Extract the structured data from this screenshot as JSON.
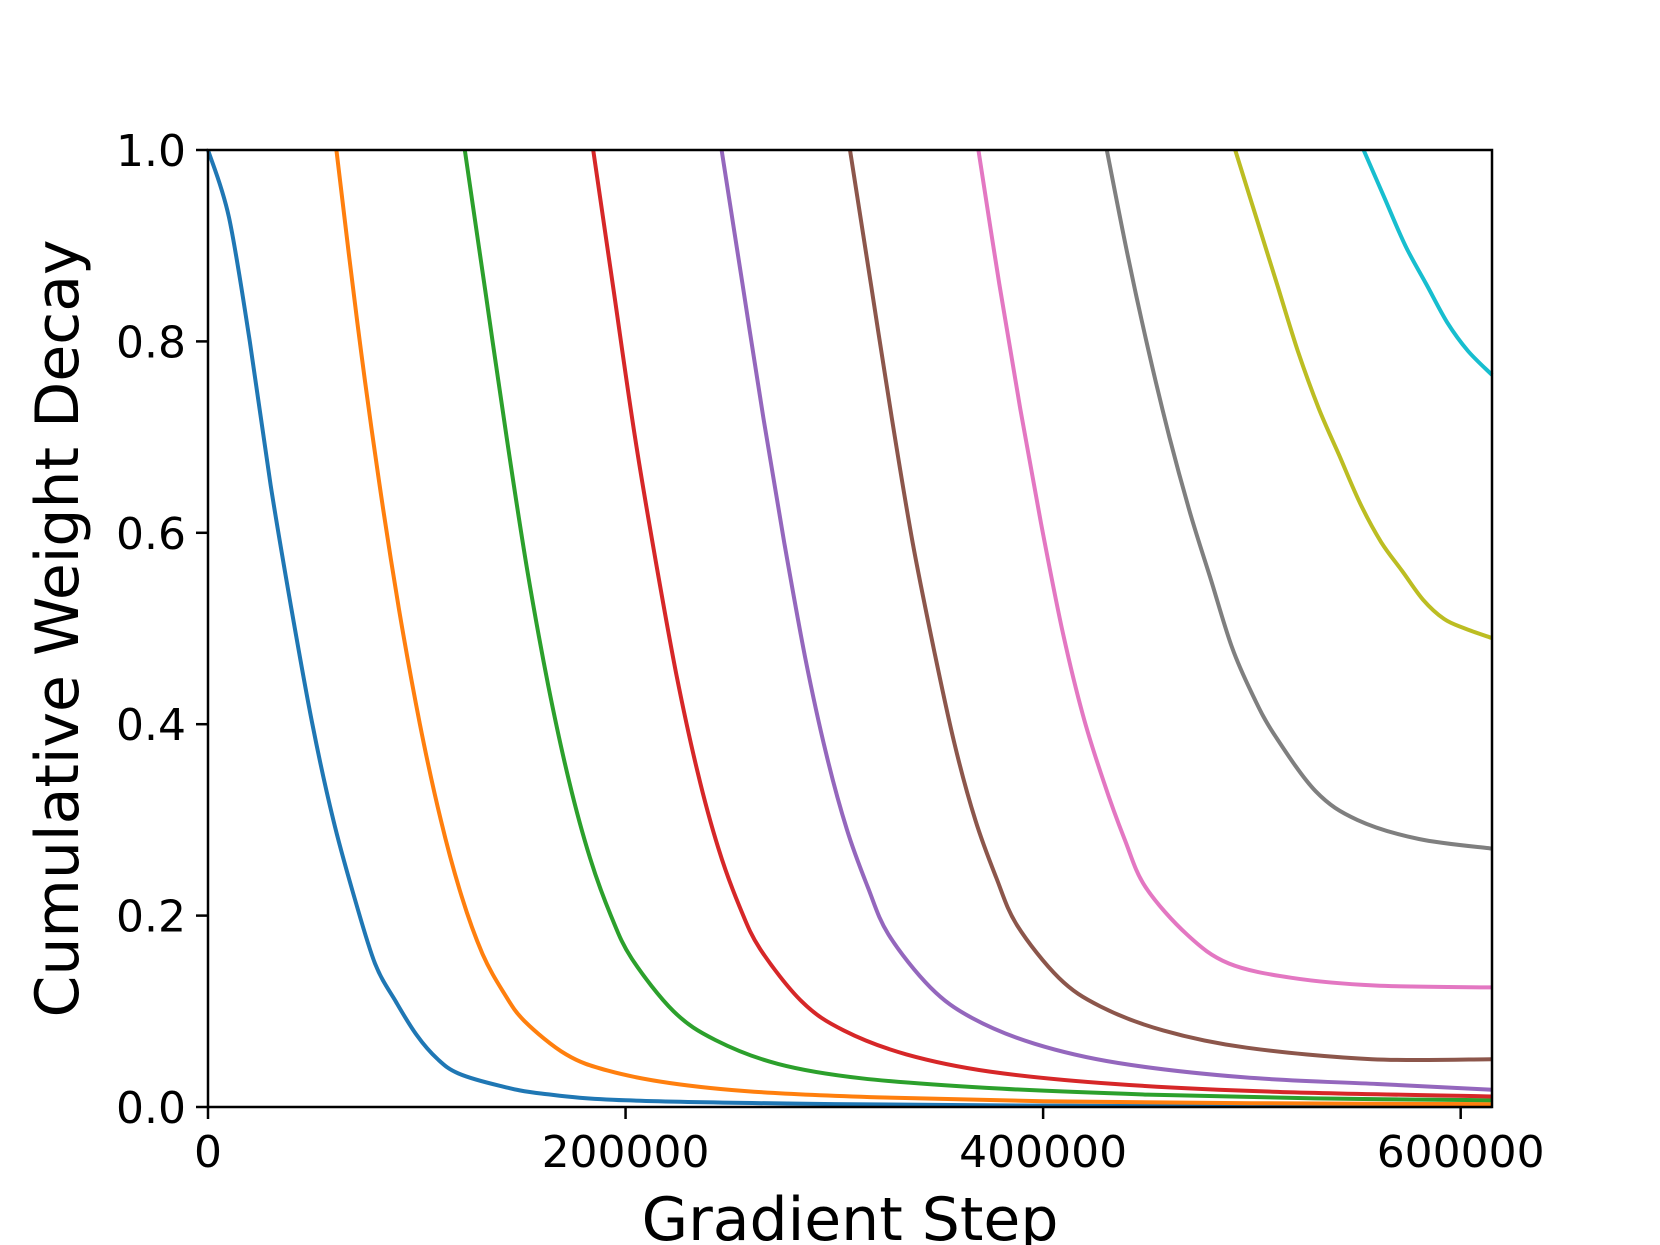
{
  "chart_data": {
    "type": "line",
    "title": "",
    "xlabel": "Gradient Step",
    "ylabel": "Cumulative Weight Decay",
    "xlim": [
      0,
      615000
    ],
    "ylim": [
      0,
      1.0
    ],
    "x_ticks": [
      0,
      200000,
      400000,
      600000
    ],
    "x_tick_labels": [
      "0",
      "200000",
      "400000",
      "600000"
    ],
    "y_ticks": [
      0.0,
      0.2,
      0.4,
      0.6,
      0.8,
      1.0
    ],
    "y_tick_labels": [
      "0.0",
      "0.2",
      "0.4",
      "0.6",
      "0.8",
      "1.0"
    ],
    "grid": false,
    "legend": "none",
    "series": [
      {
        "color": "#1f77b4",
        "start": 0,
        "points": [
          [
            0,
            1.0
          ],
          [
            10000,
            0.93
          ],
          [
            20000,
            0.8
          ],
          [
            30000,
            0.65
          ],
          [
            40000,
            0.52
          ],
          [
            50000,
            0.4
          ],
          [
            60000,
            0.3
          ],
          [
            70000,
            0.22
          ],
          [
            80000,
            0.15
          ],
          [
            90000,
            0.11
          ],
          [
            100000,
            0.075
          ],
          [
            110000,
            0.05
          ],
          [
            120000,
            0.035
          ],
          [
            140000,
            0.022
          ],
          [
            160000,
            0.014
          ],
          [
            200000,
            0.007
          ],
          [
            300000,
            0.003
          ],
          [
            400000,
            0.0015
          ],
          [
            500000,
            0.001
          ],
          [
            615000,
            0.0007
          ]
        ]
      },
      {
        "color": "#ff7f0e",
        "start": 61500,
        "points": [
          [
            61500,
            1.0
          ],
          [
            71500,
            0.82
          ],
          [
            81500,
            0.66
          ],
          [
            91500,
            0.52
          ],
          [
            101500,
            0.4
          ],
          [
            111500,
            0.3
          ],
          [
            121500,
            0.22
          ],
          [
            131500,
            0.16
          ],
          [
            141500,
            0.12
          ],
          [
            151500,
            0.09
          ],
          [
            171500,
            0.055
          ],
          [
            191500,
            0.038
          ],
          [
            221500,
            0.025
          ],
          [
            261500,
            0.016
          ],
          [
            321500,
            0.01
          ],
          [
            400000,
            0.006
          ],
          [
            500000,
            0.004
          ],
          [
            615000,
            0.003
          ]
        ]
      },
      {
        "color": "#2ca02c",
        "start": 123000,
        "points": [
          [
            123000,
            1.0
          ],
          [
            133000,
            0.85
          ],
          [
            143000,
            0.7
          ],
          [
            153000,
            0.56
          ],
          [
            163000,
            0.44
          ],
          [
            173000,
            0.34
          ],
          [
            183000,
            0.26
          ],
          [
            193000,
            0.2
          ],
          [
            203000,
            0.155
          ],
          [
            223000,
            0.1
          ],
          [
            243000,
            0.07
          ],
          [
            273000,
            0.045
          ],
          [
            313000,
            0.03
          ],
          [
            373000,
            0.02
          ],
          [
            450000,
            0.013
          ],
          [
            530000,
            0.009
          ],
          [
            615000,
            0.007
          ]
        ]
      },
      {
        "color": "#d62728",
        "start": 184500,
        "points": [
          [
            184500,
            1.0
          ],
          [
            194500,
            0.85
          ],
          [
            204500,
            0.7
          ],
          [
            214500,
            0.57
          ],
          [
            224500,
            0.45
          ],
          [
            234500,
            0.35
          ],
          [
            244500,
            0.27
          ],
          [
            254500,
            0.21
          ],
          [
            264500,
            0.165
          ],
          [
            284500,
            0.11
          ],
          [
            304500,
            0.08
          ],
          [
            334500,
            0.055
          ],
          [
            374500,
            0.037
          ],
          [
            434500,
            0.024
          ],
          [
            510000,
            0.016
          ],
          [
            615000,
            0.011
          ]
        ]
      },
      {
        "color": "#9467bd",
        "start": 246000,
        "points": [
          [
            246000,
            1.0
          ],
          [
            256000,
            0.86
          ],
          [
            266000,
            0.72
          ],
          [
            276000,
            0.59
          ],
          [
            286000,
            0.47
          ],
          [
            296000,
            0.37
          ],
          [
            306000,
            0.29
          ],
          [
            316000,
            0.23
          ],
          [
            326000,
            0.18
          ],
          [
            346000,
            0.125
          ],
          [
            366000,
            0.093
          ],
          [
            396000,
            0.066
          ],
          [
            436000,
            0.046
          ],
          [
            496000,
            0.031
          ],
          [
            560000,
            0.024
          ],
          [
            615000,
            0.018
          ]
        ]
      },
      {
        "color": "#8c564b",
        "start": 307500,
        "points": [
          [
            307500,
            1.0
          ],
          [
            317500,
            0.86
          ],
          [
            327500,
            0.72
          ],
          [
            337500,
            0.59
          ],
          [
            347500,
            0.48
          ],
          [
            357500,
            0.38
          ],
          [
            367500,
            0.3
          ],
          [
            377500,
            0.24
          ],
          [
            387500,
            0.19
          ],
          [
            407500,
            0.135
          ],
          [
            427500,
            0.105
          ],
          [
            457500,
            0.08
          ],
          [
            497500,
            0.062
          ],
          [
            557500,
            0.05
          ],
          [
            615000,
            0.05
          ]
        ]
      },
      {
        "color": "#e377c2",
        "start": 369000,
        "points": [
          [
            369000,
            1.0
          ],
          [
            379000,
            0.86
          ],
          [
            389000,
            0.73
          ],
          [
            399000,
            0.61
          ],
          [
            409000,
            0.5
          ],
          [
            419000,
            0.41
          ],
          [
            429000,
            0.34
          ],
          [
            439000,
            0.28
          ],
          [
            449000,
            0.23
          ],
          [
            469000,
            0.18
          ],
          [
            489000,
            0.15
          ],
          [
            519000,
            0.135
          ],
          [
            559000,
            0.127
          ],
          [
            615000,
            0.125
          ]
        ]
      },
      {
        "color": "#7f7f7f",
        "start": 430500,
        "points": [
          [
            430500,
            1.0
          ],
          [
            440500,
            0.89
          ],
          [
            450500,
            0.79
          ],
          [
            460500,
            0.7
          ],
          [
            470500,
            0.62
          ],
          [
            480500,
            0.55
          ],
          [
            490500,
            0.48
          ],
          [
            500500,
            0.43
          ],
          [
            510500,
            0.39
          ],
          [
            530500,
            0.33
          ],
          [
            550500,
            0.3
          ],
          [
            580000,
            0.28
          ],
          [
            615000,
            0.27
          ]
        ]
      },
      {
        "color": "#bcbd22",
        "start": 492000,
        "points": [
          [
            492000,
            1.0
          ],
          [
            502000,
            0.93
          ],
          [
            512000,
            0.86
          ],
          [
            522000,
            0.79
          ],
          [
            532000,
            0.73
          ],
          [
            542000,
            0.68
          ],
          [
            552000,
            0.63
          ],
          [
            562000,
            0.59
          ],
          [
            572000,
            0.56
          ],
          [
            582000,
            0.53
          ],
          [
            592000,
            0.51
          ],
          [
            602000,
            0.5
          ],
          [
            615000,
            0.49
          ]
        ]
      },
      {
        "color": "#17becf",
        "start": 553500,
        "points": [
          [
            553500,
            1.0
          ],
          [
            563500,
            0.95
          ],
          [
            573500,
            0.9
          ],
          [
            583500,
            0.86
          ],
          [
            593500,
            0.82
          ],
          [
            603500,
            0.79
          ],
          [
            615000,
            0.765
          ]
        ]
      }
    ]
  }
}
